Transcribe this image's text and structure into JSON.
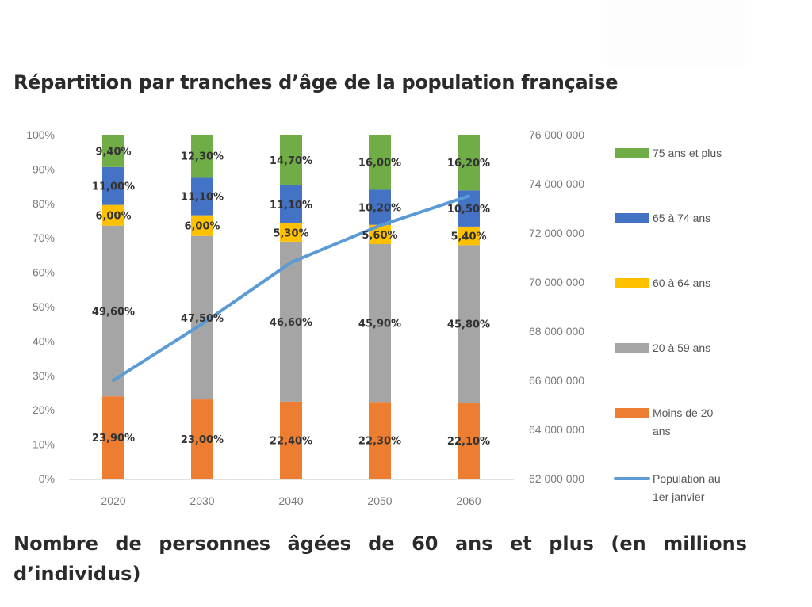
{
  "page": {
    "title": "Répartition par tranches d’âge de la population française",
    "subtitle": "Nombre de personnes âgées de 60 ans et plus (en millions d’individus)"
  },
  "chart_data": {
    "type": "bar",
    "stacked": true,
    "percent_stacked": true,
    "title": "Répartition par tranches d’âge de la population française",
    "categories": [
      "2020",
      "2030",
      "2040",
      "2050",
      "2060"
    ],
    "series": [
      {
        "name": "Moins de 20 ans",
        "color": "#ED7D31",
        "values": [
          23.9,
          23.0,
          22.4,
          22.3,
          22.1
        ],
        "labels": [
          "23,90%",
          "23,00%",
          "22,40%",
          "22,30%",
          "22,10%"
        ]
      },
      {
        "name": "20 à 59 ans",
        "color": "#A5A5A5",
        "values": [
          49.6,
          47.5,
          46.6,
          45.9,
          45.8
        ],
        "labels": [
          "49,60%",
          "47,50%",
          "46,60%",
          "45,90%",
          "45,80%"
        ]
      },
      {
        "name": "60 à 64 ans",
        "color": "#FFC000",
        "values": [
          6.0,
          6.0,
          5.3,
          5.6,
          5.4
        ],
        "labels": [
          "6,00%",
          "6,00%",
          "5,30%",
          "5,60%",
          "5,40%"
        ]
      },
      {
        "name": "65 à 74 ans",
        "color": "#4472C4",
        "values": [
          11.0,
          11.1,
          11.1,
          10.2,
          10.5
        ],
        "labels": [
          "11,00%",
          "11,10%",
          "11,10%",
          "10,20%",
          "10,50%"
        ]
      },
      {
        "name": "75 ans et plus",
        "color": "#70AD47",
        "values": [
          9.4,
          12.3,
          14.7,
          16.0,
          16.2
        ],
        "labels": [
          "9,40%",
          "12,30%",
          "14,70%",
          "16,00%",
          "16,20%"
        ]
      }
    ],
    "line_series": {
      "name": "Population au 1er janvier",
      "color": "#5B9BD5",
      "axis": "right",
      "values": [
        66000000,
        68300000,
        70800000,
        72300000,
        73500000
      ]
    },
    "left_axis": {
      "ylim": [
        0,
        100
      ],
      "ticks": [
        "0%",
        "10%",
        "20%",
        "30%",
        "40%",
        "50%",
        "60%",
        "70%",
        "80%",
        "90%",
        "100%"
      ]
    },
    "right_axis": {
      "ylim": [
        62000000,
        76000000
      ],
      "ticks": [
        "62 000 000",
        "64 000 000",
        "66 000 000",
        "68 000 000",
        "70 000 000",
        "72 000 000",
        "74 000 000",
        "76 000 000"
      ]
    },
    "legend": {
      "placement": "right",
      "entries": [
        {
          "label": "75 ans et plus",
          "type": "box",
          "color": "#70AD47"
        },
        {
          "label": "65 à 74 ans",
          "type": "box",
          "color": "#4472C4"
        },
        {
          "label": "60 à 64 ans",
          "type": "box",
          "color": "#FFC000"
        },
        {
          "label": "20 à 59 ans",
          "type": "box",
          "color": "#A5A5A5"
        },
        {
          "label": "Moins de 20 ans",
          "label_lines": [
            "Moins de 20",
            "ans"
          ],
          "type": "box",
          "color": "#ED7D31"
        },
        {
          "label": "Population au 1er janvier",
          "label_lines": [
            "Population au",
            "1er janvier"
          ],
          "type": "line",
          "color": "#5B9BD5"
        }
      ]
    },
    "xlabel": "",
    "ylabel": "",
    "grid": false
  }
}
